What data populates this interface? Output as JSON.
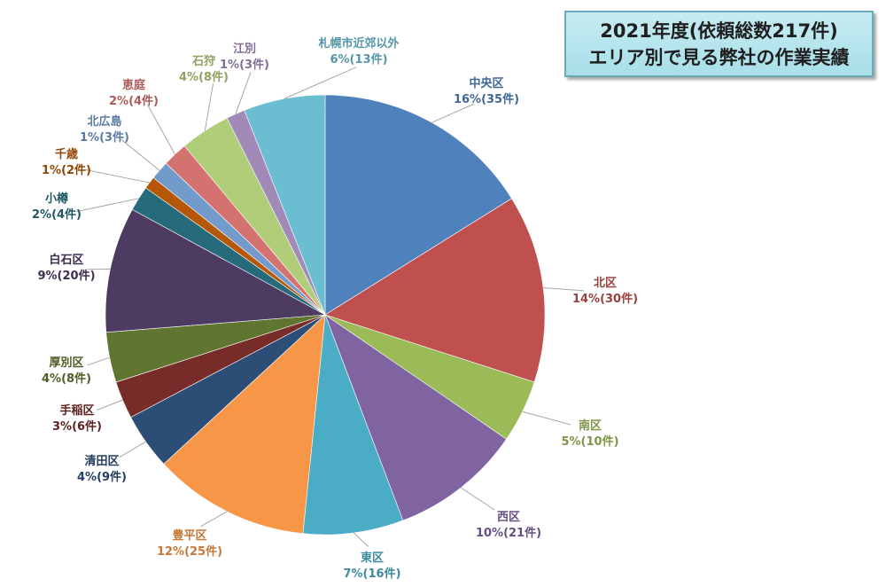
{
  "chart_data": {
    "type": "pie",
    "title_lines": [
      "2021年度(依頼総数217件)",
      "エリア別で見る弊社の作業実績"
    ],
    "start": "12 o'clock",
    "direction": "clockwise",
    "legend": "none (data labels on leader lines)",
    "slices": [
      {
        "name": "中央区",
        "value": 35,
        "label": "16%(35件)",
        "color": "#4f81bd"
      },
      {
        "name": "北区",
        "value": 30,
        "label": "14%(30件)",
        "color": "#c0504d"
      },
      {
        "name": "南区",
        "value": 10,
        "label": "5%(10件)",
        "color": "#9bbb59"
      },
      {
        "name": "西区",
        "value": 21,
        "label": "10%(21件)",
        "color": "#8064a2"
      },
      {
        "name": "東区",
        "value": 16,
        "label": "7%(16件)",
        "color": "#4bacc6"
      },
      {
        "name": "豊平区",
        "value": 25,
        "label": "12%(25件)",
        "color": "#f79646"
      },
      {
        "name": "清田区",
        "value": 9,
        "label": "4%(9件)",
        "color": "#2c4d75"
      },
      {
        "name": "手稲区",
        "value": 6,
        "label": "3%(6件)",
        "color": "#772c2a"
      },
      {
        "name": "厚別区",
        "value": 8,
        "label": "4%(8件)",
        "color": "#5f7530"
      },
      {
        "name": "白石区",
        "value": 20,
        "label": "9%(20件)",
        "color": "#4d3b62"
      },
      {
        "name": "小樽",
        "value": 4,
        "label": "2%(4件)",
        "color": "#276a7c"
      },
      {
        "name": "千歳",
        "value": 2,
        "label": "1%(2件)",
        "color": "#b65708"
      },
      {
        "name": "北広島",
        "value": 3,
        "label": "1%(3件)",
        "color": "#729aca"
      },
      {
        "name": "恵庭",
        "value": 4,
        "label": "2%(4件)",
        "color": "#d4726f"
      },
      {
        "name": "石狩",
        "value": 8,
        "label": "4%(8件)",
        "color": "#b0cd7a"
      },
      {
        "name": "江別",
        "value": 3,
        "label": "1%(3件)",
        "color": "#a18ab8"
      },
      {
        "name": "札幌市近郊以外",
        "value": 13,
        "label": "6%(13件)",
        "color": "#6bbdd1"
      }
    ]
  }
}
